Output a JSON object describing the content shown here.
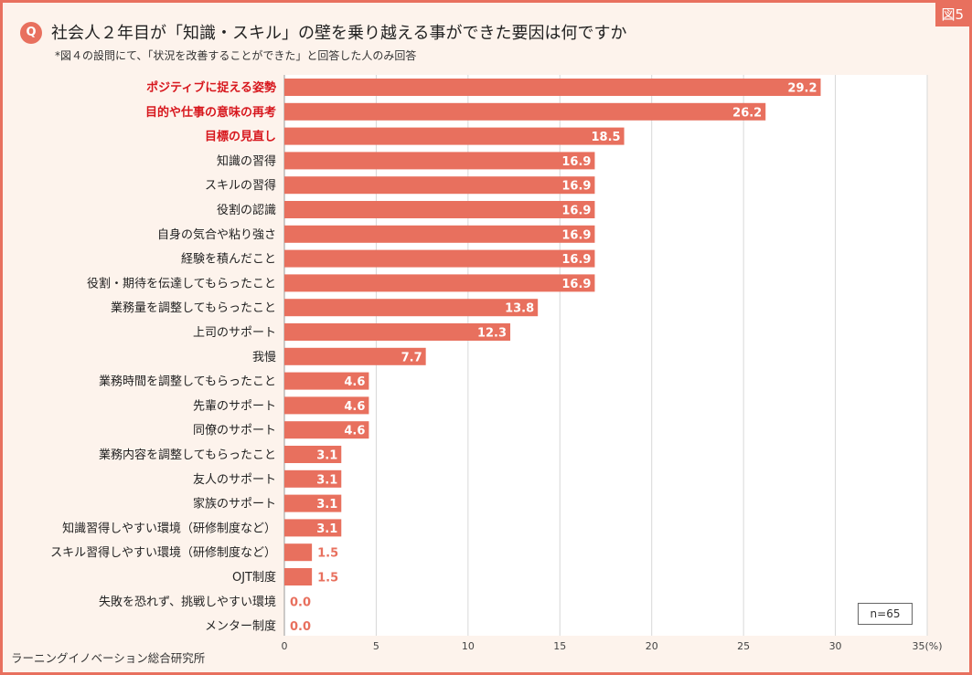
{
  "figure_label": "図5",
  "question_badge": "Q",
  "question": "社会人２年目が「知識・スキル」の壁を乗り越える事ができた要因は何ですか",
  "note": "*図４の設問にて、「状況を改善することができた」と回答した人のみ回答",
  "source": "ラーニングイノベーション総合研究所",
  "sample_note": "n=65",
  "colors": {
    "bar": "#e8705e",
    "highlight_text": "#d7171d",
    "frame": "#e8705e",
    "background": "#fdf3ec"
  },
  "chart_data": {
    "type": "bar",
    "orientation": "horizontal",
    "categories": [
      "ポジティブに捉える姿勢",
      "目的や仕事の意味の再考",
      "目標の見直し",
      "知識の習得",
      "スキルの習得",
      "役割の認識",
      "自身の気合や粘り強さ",
      "経験を積んだこと",
      "役割・期待を伝達してもらったこと",
      "業務量を調整してもらったこと",
      "上司のサポート",
      "我慢",
      "業務時間を調整してもらったこと",
      "先輩のサポート",
      "同僚のサポート",
      "業務内容を調整してもらったこと",
      "友人のサポート",
      "家族のサポート",
      "知識習得しやすい環境（研修制度など）",
      "スキル習得しやすい環境（研修制度など）",
      "OJT制度",
      "失敗を恐れず、挑戦しやすい環境",
      "メンター制度"
    ],
    "values": [
      29.2,
      26.2,
      18.5,
      16.9,
      16.9,
      16.9,
      16.9,
      16.9,
      16.9,
      13.8,
      12.3,
      7.7,
      4.6,
      4.6,
      4.6,
      3.1,
      3.1,
      3.1,
      3.1,
      1.5,
      1.5,
      0.0,
      0.0
    ],
    "value_labels": [
      "29.2",
      "26.2",
      "18.5",
      "16.9",
      "16.9",
      "16.9",
      "16.9",
      "16.9",
      "16.9",
      "13.8",
      "12.3",
      "7.7",
      "4.6",
      "4.6",
      "4.6",
      "3.1",
      "3.1",
      "3.1",
      "3.1",
      "1.5",
      "1.5",
      "0.0",
      "0.0"
    ],
    "highlighted_categories": [
      0,
      1,
      2
    ],
    "xlim": [
      0,
      35
    ],
    "x_ticks": [
      "0",
      "5",
      "10",
      "15",
      "20",
      "25",
      "30",
      "35"
    ],
    "x_unit": "(%)",
    "grid": true
  }
}
